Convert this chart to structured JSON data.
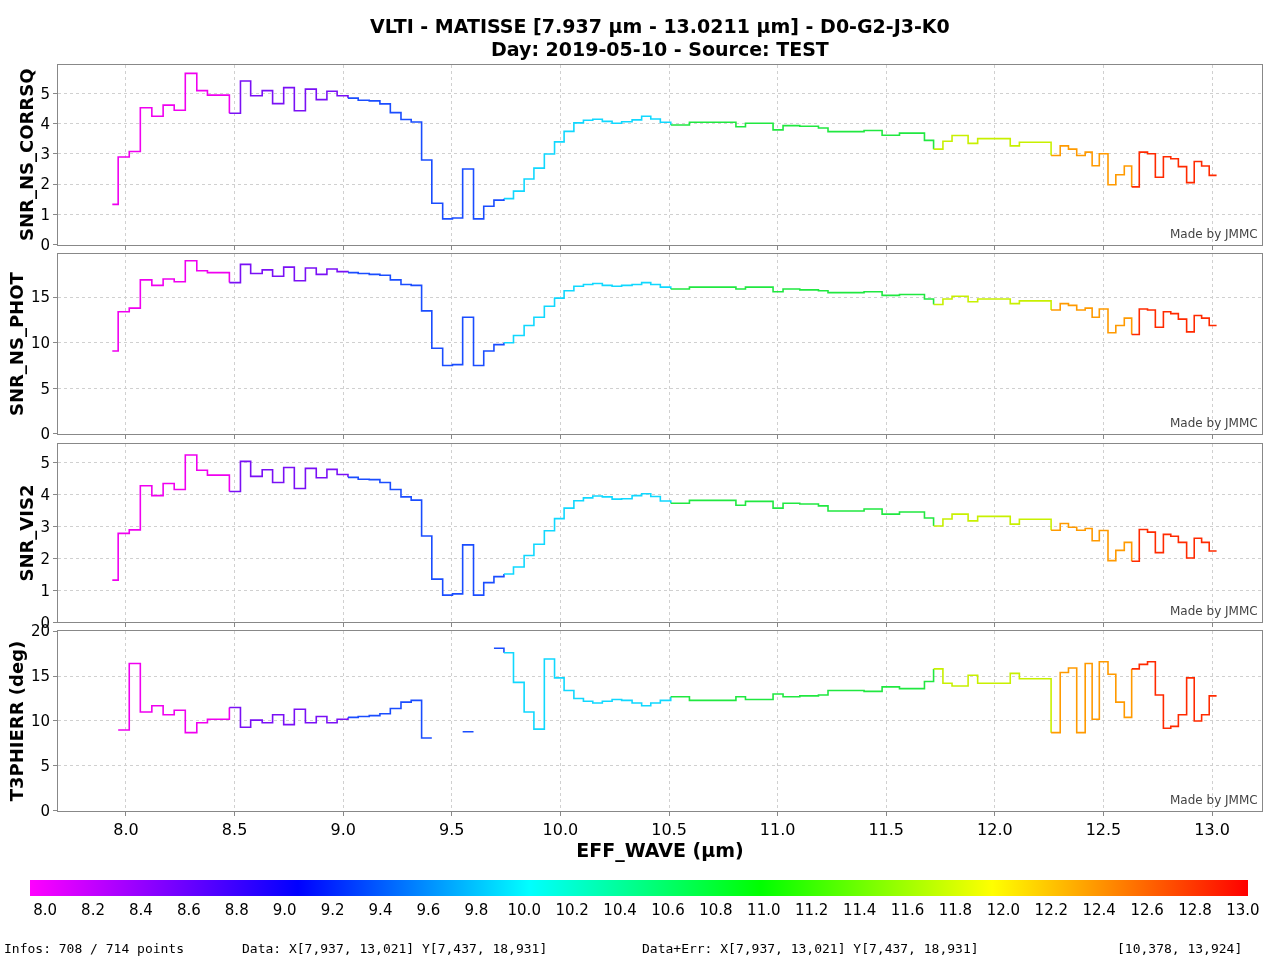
{
  "chart_data": [
    {
      "type": "step",
      "title": "VLTI - MATISSE [7.937 µm - 13.0211 µm] - D0-G2-J3-K0",
      "subtitle": "Day: 2019-05-10 - Source: TEST",
      "ylabel": "SNR_NS_CORRSQ",
      "xlim": [
        7.687,
        13.23
      ],
      "xticks": [
        8,
        8.5,
        9,
        9.5,
        10,
        10.5,
        11,
        11.5,
        12,
        12.5,
        13
      ],
      "ylim": [
        0,
        5.95
      ],
      "yticks": [
        0,
        1,
        2,
        3,
        4,
        5
      ],
      "grid": true,
      "tick_labels": "y",
      "annotations": [
        "Made by JMMC"
      ],
      "series": [
        {
          "color": "#f000f0",
          "x": [
            7.937,
            7.964,
            8.015,
            8.066,
            8.119,
            8.171,
            8.222,
            8.273,
            8.326,
            8.375,
            8.476
          ],
          "values": [
            1.33,
            2.9,
            3.08,
            4.53,
            4.25,
            4.62,
            4.45,
            5.67,
            5.1,
            4.95,
            4.35
          ]
        },
        {
          "color": "#7a10f5",
          "x": [
            8.476,
            8.527,
            8.574,
            8.627,
            8.675,
            8.726,
            8.775,
            8.826,
            8.876,
            8.925,
            8.972,
            9.022
          ],
          "values": [
            4.35,
            5.42,
            4.93,
            5.1,
            4.67,
            5.2,
            4.43,
            5.15,
            4.8,
            5.08,
            4.93,
            4.85
          ]
        },
        {
          "color": "#1a4dff",
          "x": [
            9.022,
            9.069,
            9.12,
            9.169,
            9.217,
            9.266,
            9.313,
            9.361,
            9.408,
            9.458,
            9.503,
            9.55,
            9.6,
            9.647,
            9.694,
            9.74
          ],
          "values": [
            4.85,
            4.78,
            4.76,
            4.66,
            4.37,
            4.14,
            4.06,
            2.8,
            1.37,
            0.85,
            0.88,
            2.5,
            0.85,
            1.27,
            1.47,
            1.52
          ]
        },
        {
          "color": "#10d8ff",
          "x": [
            9.74,
            9.784,
            9.833,
            9.878,
            9.926,
            9.973,
            10.017,
            10.062,
            10.106,
            10.149,
            10.193,
            10.238,
            10.282,
            10.33,
            10.374,
            10.416,
            10.46,
            10.508
          ],
          "values": [
            1.52,
            1.77,
            2.17,
            2.53,
            3.0,
            3.4,
            3.75,
            4.03,
            4.12,
            4.15,
            4.08,
            4.02,
            4.07,
            4.13,
            4.25,
            4.16,
            4.05,
            3.96
          ]
        },
        {
          "color": "#20e840",
          "x": [
            10.508,
            10.594,
            10.808,
            10.852,
            10.979,
            11.025,
            11.102,
            11.188,
            11.232,
            11.398,
            11.481,
            11.561,
            11.676,
            11.718
          ],
          "values": [
            3.96,
            4.05,
            3.9,
            4.02,
            3.8,
            3.94,
            3.92,
            3.86,
            3.74,
            3.78,
            3.62,
            3.69,
            3.45,
            3.16
          ]
        },
        {
          "color": "#c8f000",
          "x": [
            11.718,
            11.761,
            11.803,
            11.877,
            11.921,
            12.071,
            12.113,
            12.259
          ],
          "values": [
            3.16,
            3.42,
            3.61,
            3.35,
            3.51,
            3.27,
            3.39,
            2.95
          ]
        },
        {
          "color": "#ff9a00",
          "x": [
            12.259,
            12.301,
            12.339,
            12.377,
            12.416,
            12.448,
            12.481,
            12.521,
            12.557,
            12.596,
            12.63
          ],
          "values": [
            2.95,
            3.27,
            3.16,
            2.95,
            3.06,
            2.61,
            3.01,
            1.98,
            2.31,
            2.6,
            1.91
          ]
        },
        {
          "color": "#ff2a00",
          "x": [
            12.63,
            12.665,
            12.703,
            12.739,
            12.776,
            12.81,
            12.845,
            12.883,
            12.918,
            12.952,
            12.987,
            13.021
          ],
          "values": [
            1.91,
            3.06,
            3.01,
            2.23,
            2.91,
            2.84,
            2.58,
            2.05,
            2.75,
            2.6,
            2.29,
            2.29
          ]
        }
      ]
    },
    {
      "type": "step",
      "ylabel": "SNR_NS_PHOT",
      "xlim": [
        7.687,
        13.23
      ],
      "xticks": [
        8,
        8.5,
        9,
        9.5,
        10,
        10.5,
        11,
        11.5,
        12,
        12.5,
        13
      ],
      "ylim": [
        0,
        19.7
      ],
      "yticks": [
        0,
        5,
        10,
        15
      ],
      "grid": true,
      "tick_labels": "y",
      "annotations": [
        "Made by JMMC"
      ],
      "series": [
        {
          "color": "#f000f0",
          "x": [
            7.937,
            7.964,
            8.015,
            8.066,
            8.119,
            8.171,
            8.222,
            8.273,
            8.326,
            8.375,
            8.476
          ],
          "values": [
            9.1,
            13.4,
            13.8,
            16.9,
            16.3,
            17.0,
            16.7,
            19.0,
            17.9,
            17.7,
            16.6
          ]
        },
        {
          "color": "#7a10f5",
          "x": [
            8.476,
            8.527,
            8.574,
            8.627,
            8.675,
            8.726,
            8.775,
            8.826,
            8.876,
            8.925,
            8.972,
            9.022
          ],
          "values": [
            16.6,
            18.6,
            17.6,
            18.0,
            17.3,
            18.3,
            16.8,
            18.2,
            17.5,
            18.1,
            17.8,
            17.7
          ]
        },
        {
          "color": "#1a4dff",
          "x": [
            9.022,
            9.069,
            9.12,
            9.169,
            9.217,
            9.266,
            9.313,
            9.361,
            9.408,
            9.458,
            9.503,
            9.55,
            9.6,
            9.647,
            9.694,
            9.74
          ],
          "values": [
            17.7,
            17.6,
            17.5,
            17.4,
            16.9,
            16.4,
            16.3,
            13.5,
            9.4,
            7.5,
            7.6,
            12.8,
            7.5,
            9.1,
            9.8,
            10.0
          ]
        },
        {
          "color": "#10d8ff",
          "x": [
            9.74,
            9.784,
            9.833,
            9.878,
            9.926,
            9.973,
            10.017,
            10.062,
            10.106,
            10.149,
            10.193,
            10.238,
            10.282,
            10.33,
            10.374,
            10.416,
            10.46,
            10.508
          ],
          "values": [
            10.0,
            10.8,
            11.9,
            12.8,
            14.0,
            14.9,
            15.7,
            16.2,
            16.4,
            16.5,
            16.3,
            16.2,
            16.3,
            16.4,
            16.6,
            16.4,
            16.1,
            15.9
          ]
        },
        {
          "color": "#20e840",
          "x": [
            10.508,
            10.594,
            10.808,
            10.852,
            10.979,
            11.025,
            11.102,
            11.188,
            11.232,
            11.398,
            11.481,
            11.561,
            11.676,
            11.718
          ],
          "values": [
            15.9,
            16.1,
            15.9,
            16.1,
            15.6,
            15.9,
            15.8,
            15.7,
            15.5,
            15.6,
            15.2,
            15.3,
            14.8,
            14.2
          ]
        },
        {
          "color": "#c8f000",
          "x": [
            11.718,
            11.761,
            11.803,
            11.877,
            11.921,
            12.071,
            12.113,
            12.259
          ],
          "values": [
            14.2,
            14.8,
            15.1,
            14.5,
            14.8,
            14.3,
            14.6,
            13.6
          ]
        },
        {
          "color": "#ff9a00",
          "x": [
            12.259,
            12.301,
            12.339,
            12.377,
            12.416,
            12.448,
            12.481,
            12.521,
            12.557,
            12.596,
            12.63
          ],
          "values": [
            13.6,
            14.3,
            14.1,
            13.6,
            13.8,
            12.8,
            13.7,
            11.1,
            11.9,
            12.7,
            10.9
          ]
        },
        {
          "color": "#ff2a00",
          "x": [
            12.63,
            12.665,
            12.703,
            12.739,
            12.776,
            12.81,
            12.845,
            12.883,
            12.918,
            12.952,
            12.987,
            13.021
          ],
          "values": [
            10.9,
            13.7,
            13.6,
            11.7,
            13.4,
            13.2,
            12.6,
            11.2,
            13.0,
            12.7,
            11.9,
            11.9
          ]
        }
      ]
    },
    {
      "type": "step",
      "ylabel": "SNR_VIS2",
      "xlim": [
        7.687,
        13.23
      ],
      "xticks": [
        8,
        8.5,
        9,
        9.5,
        10,
        10.5,
        11,
        11.5,
        12,
        12.5,
        13
      ],
      "ylim": [
        0,
        5.58
      ],
      "yticks": [
        0,
        1,
        2,
        3,
        4,
        5
      ],
      "grid": true,
      "tick_labels": "y",
      "annotations": [
        "Made by JMMC"
      ],
      "series": [
        {
          "color": "#f000f0",
          "x": [
            7.937,
            7.964,
            8.015,
            8.066,
            8.119,
            8.171,
            8.222,
            8.273,
            8.326,
            8.375,
            8.476
          ],
          "values": [
            1.32,
            2.78,
            2.89,
            4.27,
            3.96,
            4.34,
            4.15,
            5.23,
            4.75,
            4.6,
            4.09
          ]
        },
        {
          "color": "#7a10f5",
          "x": [
            8.476,
            8.527,
            8.574,
            8.627,
            8.675,
            8.726,
            8.775,
            8.826,
            8.876,
            8.925,
            8.972,
            9.022
          ],
          "values": [
            4.09,
            5.03,
            4.56,
            4.77,
            4.37,
            4.84,
            4.18,
            4.81,
            4.52,
            4.78,
            4.62,
            4.53
          ]
        },
        {
          "color": "#1a4dff",
          "x": [
            9.022,
            9.069,
            9.12,
            9.169,
            9.217,
            9.266,
            9.313,
            9.361,
            9.408,
            9.458,
            9.503,
            9.55,
            9.6,
            9.647,
            9.694,
            9.74
          ],
          "values": [
            4.53,
            4.47,
            4.46,
            4.37,
            4.15,
            3.92,
            3.82,
            2.7,
            1.35,
            0.85,
            0.89,
            2.42,
            0.85,
            1.24,
            1.43,
            1.51
          ]
        },
        {
          "color": "#10d8ff",
          "x": [
            9.74,
            9.784,
            9.833,
            9.878,
            9.926,
            9.973,
            10.017,
            10.062,
            10.106,
            10.149,
            10.193,
            10.238,
            10.282,
            10.33,
            10.374,
            10.416,
            10.46,
            10.508
          ],
          "values": [
            1.51,
            1.73,
            2.09,
            2.44,
            2.86,
            3.24,
            3.57,
            3.8,
            3.89,
            3.95,
            3.92,
            3.85,
            3.86,
            3.96,
            4.02,
            3.93,
            3.79,
            3.72
          ]
        },
        {
          "color": "#20e840",
          "x": [
            10.508,
            10.594,
            10.808,
            10.852,
            10.979,
            11.025,
            11.102,
            11.188,
            11.232,
            11.398,
            11.481,
            11.561,
            11.676,
            11.718
          ],
          "values": [
            3.72,
            3.81,
            3.66,
            3.78,
            3.57,
            3.72,
            3.7,
            3.64,
            3.48,
            3.54,
            3.38,
            3.45,
            3.26,
            3.01
          ]
        },
        {
          "color": "#c8f000",
          "x": [
            11.718,
            11.761,
            11.803,
            11.877,
            11.921,
            12.071,
            12.113,
            12.259
          ],
          "values": [
            3.01,
            3.23,
            3.38,
            3.17,
            3.31,
            3.07,
            3.22,
            2.88
          ]
        },
        {
          "color": "#ff9a00",
          "x": [
            12.259,
            12.301,
            12.339,
            12.377,
            12.416,
            12.448,
            12.481,
            12.521,
            12.557,
            12.596,
            12.63
          ],
          "values": [
            2.88,
            3.09,
            2.97,
            2.88,
            2.93,
            2.55,
            2.87,
            1.93,
            2.25,
            2.5,
            1.91
          ]
        },
        {
          "color": "#ff2a00",
          "x": [
            12.63,
            12.665,
            12.703,
            12.739,
            12.776,
            12.81,
            12.845,
            12.883,
            12.918,
            12.952,
            12.987,
            13.021
          ],
          "values": [
            1.91,
            2.9,
            2.82,
            2.18,
            2.75,
            2.69,
            2.5,
            2.01,
            2.63,
            2.5,
            2.23,
            2.23
          ]
        }
      ]
    },
    {
      "type": "step",
      "ylabel": "T3PHIERR (deg)",
      "xlabel": "EFF_WAVE (µm)",
      "xlim": [
        7.687,
        13.23
      ],
      "xticks": [
        {
          "value": 8,
          "label": "8.0"
        },
        8.5,
        {
          "value": 9,
          "label": "9.0"
        },
        9.5,
        {
          "value": 10,
          "label": "10.0"
        },
        10.5,
        {
          "value": 11,
          "label": "11.0"
        },
        11.5,
        {
          "value": 12,
          "label": "12.0"
        },
        12.5,
        {
          "value": 13,
          "label": "13.0"
        }
      ],
      "ylim": [
        0,
        20
      ],
      "yticks": [
        0,
        5,
        10,
        15,
        20
      ],
      "grid": true,
      "clim": [
        7.937,
        13.0211
      ],
      "cticks": [
        {
          "value": 8,
          "label": "8.0"
        },
        8.2,
        8.4,
        8.6,
        8.8,
        {
          "value": 9,
          "label": "9.0"
        },
        9.2,
        9.4,
        9.6,
        9.8,
        {
          "value": 10,
          "label": "10.0"
        },
        10.2,
        10.4,
        10.6,
        10.8,
        {
          "value": 11,
          "label": "11.0"
        },
        11.2,
        11.4,
        11.6,
        11.8,
        {
          "value": 12,
          "label": "12.0"
        },
        12.2,
        12.4,
        12.6,
        12.8,
        {
          "value": 13,
          "label": "13.0"
        }
      ],
      "annotations": [
        "Made by JMMC",
        "Infos: 708 / 714 points",
        "Data: X[7,937, 13,021] Y[7,437, 18,931]",
        "Data+Err: X[7,937, 13,021] Y[7,437, 18,931]",
        "[10,378, 13,924]"
      ],
      "series": [
        {
          "color": "#f000f0",
          "x": [
            7.964,
            8.015,
            8.066,
            8.119,
            8.171,
            8.222,
            8.273,
            8.326,
            8.375,
            8.476
          ],
          "values": [
            9.0,
            16.4,
            11.0,
            11.7,
            10.7,
            11.2,
            8.7,
            9.8,
            10.2,
            11.5
          ]
        },
        {
          "color": "#7a10f5",
          "x": [
            8.476,
            8.527,
            8.574,
            8.627,
            8.675,
            8.726,
            8.775,
            8.826,
            8.876,
            8.925,
            8.972,
            9.022
          ],
          "values": [
            11.5,
            9.3,
            10.1,
            9.8,
            10.7,
            9.6,
            11.3,
            9.8,
            10.5,
            9.8,
            10.2,
            10.4
          ]
        },
        {
          "color": "#1a4dff",
          "x": [
            9.022,
            9.069,
            9.12,
            9.169,
            9.217,
            9.266,
            9.313,
            9.361,
            9.408,
            9.458,
            9.503,
            9.55,
            9.6,
            9.647,
            9.694,
            9.74
          ],
          "values": [
            10.4,
            10.5,
            10.6,
            10.8,
            11.4,
            12.1,
            12.3,
            8.1,
            null,
            null,
            null,
            8.8,
            null,
            null,
            18.1,
            17.6
          ]
        },
        {
          "color": "#10d8ff",
          "x": [
            9.74,
            9.784,
            9.833,
            9.878,
            9.926,
            9.973,
            10.017,
            10.062,
            10.106,
            10.149,
            10.193,
            10.238,
            10.282,
            10.33,
            10.374,
            10.416,
            10.46,
            10.508
          ],
          "values": [
            17.6,
            14.3,
            11.0,
            9.1,
            16.9,
            14.8,
            13.4,
            12.5,
            12.2,
            12.0,
            12.2,
            12.4,
            12.3,
            12.0,
            11.7,
            12.0,
            12.3,
            12.7
          ]
        },
        {
          "color": "#20e840",
          "x": [
            10.508,
            10.594,
            10.808,
            10.852,
            10.979,
            11.025,
            11.102,
            11.188,
            11.232,
            11.398,
            11.481,
            11.561,
            11.676,
            11.718
          ],
          "values": [
            12.7,
            12.3,
            12.7,
            12.4,
            13.0,
            12.7,
            12.8,
            12.9,
            13.4,
            13.3,
            13.8,
            13.6,
            14.4,
            15.8
          ]
        },
        {
          "color": "#c8f000",
          "x": [
            11.718,
            11.761,
            11.803,
            11.877,
            11.921,
            12.071,
            12.113,
            12.259
          ],
          "values": [
            15.8,
            14.2,
            13.9,
            15.1,
            14.2,
            15.3,
            14.7,
            8.7
          ]
        },
        {
          "color": "#ff9a00",
          "x": [
            12.259,
            12.301,
            12.339,
            12.377,
            12.416,
            12.448,
            12.481,
            12.521,
            12.557,
            12.596,
            12.63
          ],
          "values": [
            8.7,
            15.4,
            15.9,
            8.7,
            16.4,
            10.2,
            16.6,
            15.2,
            12.1,
            10.4,
            15.8
          ]
        },
        {
          "color": "#ff2a00",
          "x": [
            12.63,
            12.665,
            12.703,
            12.739,
            12.776,
            12.81,
            12.845,
            12.883,
            12.918,
            12.952,
            12.987,
            13.021
          ],
          "values": [
            15.8,
            16.3,
            16.6,
            12.9,
            9.2,
            9.4,
            10.7,
            14.8,
            10.0,
            10.7,
            12.8,
            12.8
          ]
        }
      ]
    }
  ]
}
